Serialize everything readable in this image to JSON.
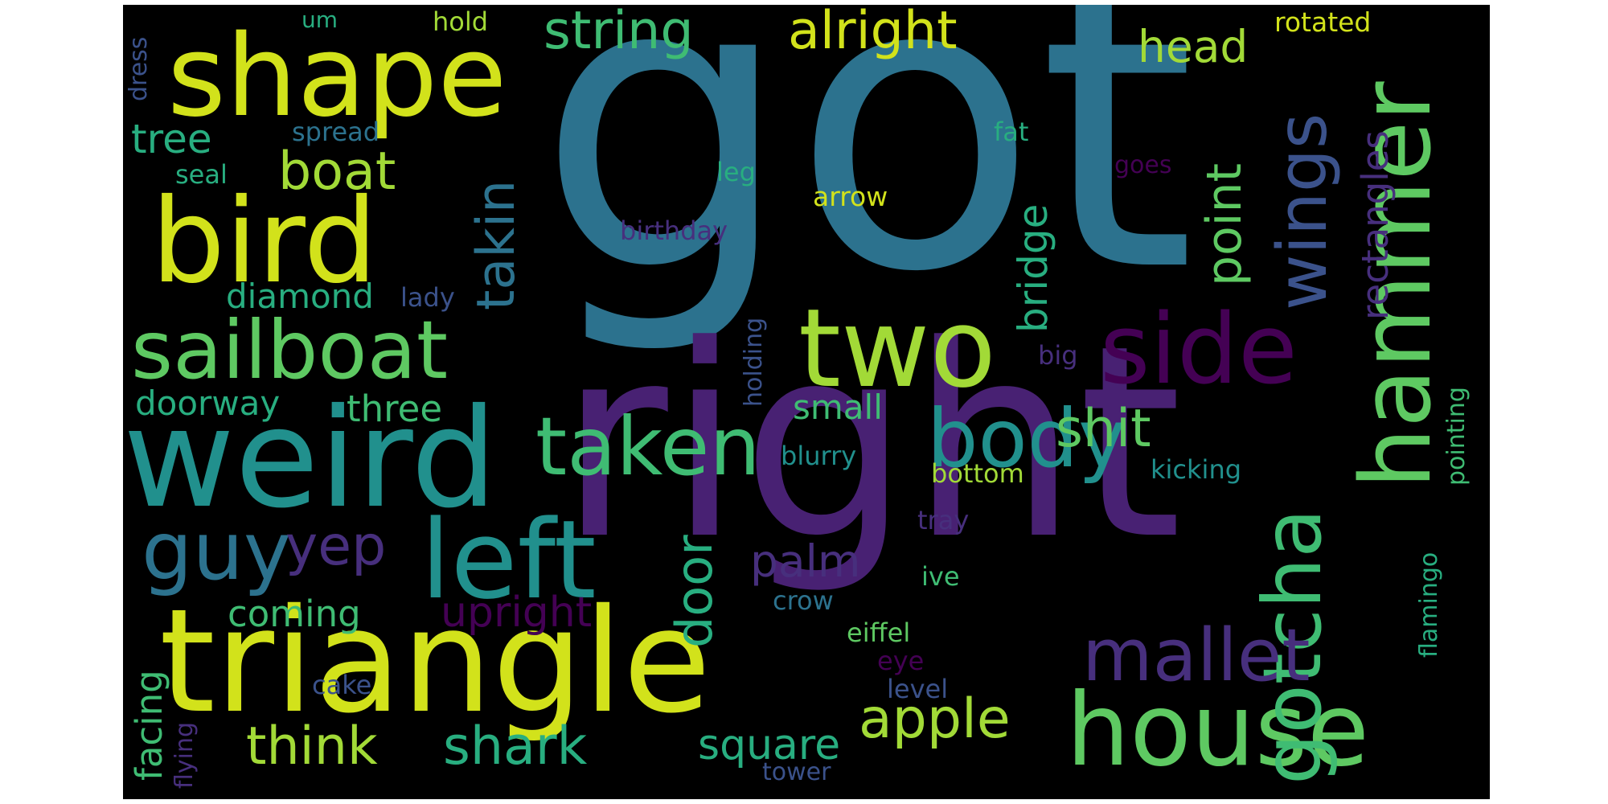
{
  "palette": {
    "yellow": "#d2e21b",
    "lime": "#a2da37",
    "lgreen": "#5ec962",
    "green": "#3fbc73",
    "teal": "#28ae80",
    "tealblue": "#21908d",
    "blue": "#2c728e",
    "dblue": "#3b528b",
    "indigo": "#472f7d",
    "purple": "#440154",
    "violet": "#482173"
  },
  "words": {
    "got": "got",
    "right": "right",
    "triangle": "triangle",
    "weird": "weird",
    "shape": "shape",
    "bird": "bird",
    "two": "two",
    "hammer": "hammer",
    "house": "house",
    "left": "left",
    "side": "side",
    "sailboat": "sailboat",
    "gotcha": "gotcha",
    "taken": "taken",
    "body": "body",
    "guy": "guy",
    "mallet": "mallet",
    "wings": "wings",
    "string": "string",
    "alright": "alright",
    "takin": "takin",
    "boat": "boat",
    "yep": "yep",
    "point": "point",
    "door": "door",
    "apple": "apple",
    "shit": "shit",
    "think": "think",
    "shark": "shark",
    "head": "head",
    "bridge": "bridge",
    "rectangles": "rectangles",
    "tree": "tree",
    "palm": "palm",
    "square": "square",
    "upright": "upright",
    "diamond": "diamond",
    "doorway": "doorway",
    "three": "three",
    "coming": "coming",
    "facing": "facing",
    "small": "small",
    "rotated": "rotated",
    "hold": "hold",
    "um": "um",
    "spread": "spread",
    "seal": "seal",
    "dress": "dress",
    "fat": "fat",
    "goes": "goes",
    "leg": "leg",
    "arrow": "arrow",
    "birthday": "birthday",
    "lady": "lady",
    "holding": "holding",
    "big": "big",
    "blurry": "blurry",
    "bottom": "bottom",
    "kicking": "kicking",
    "tray": "tray",
    "ive": "ive",
    "crow": "crow",
    "eiffel": "eiffel",
    "eye": "eye",
    "level": "level",
    "cake": "cake",
    "flying": "flying",
    "tower": "tower",
    "flamingo": "flamingo",
    "pointing": "pointing"
  }
}
